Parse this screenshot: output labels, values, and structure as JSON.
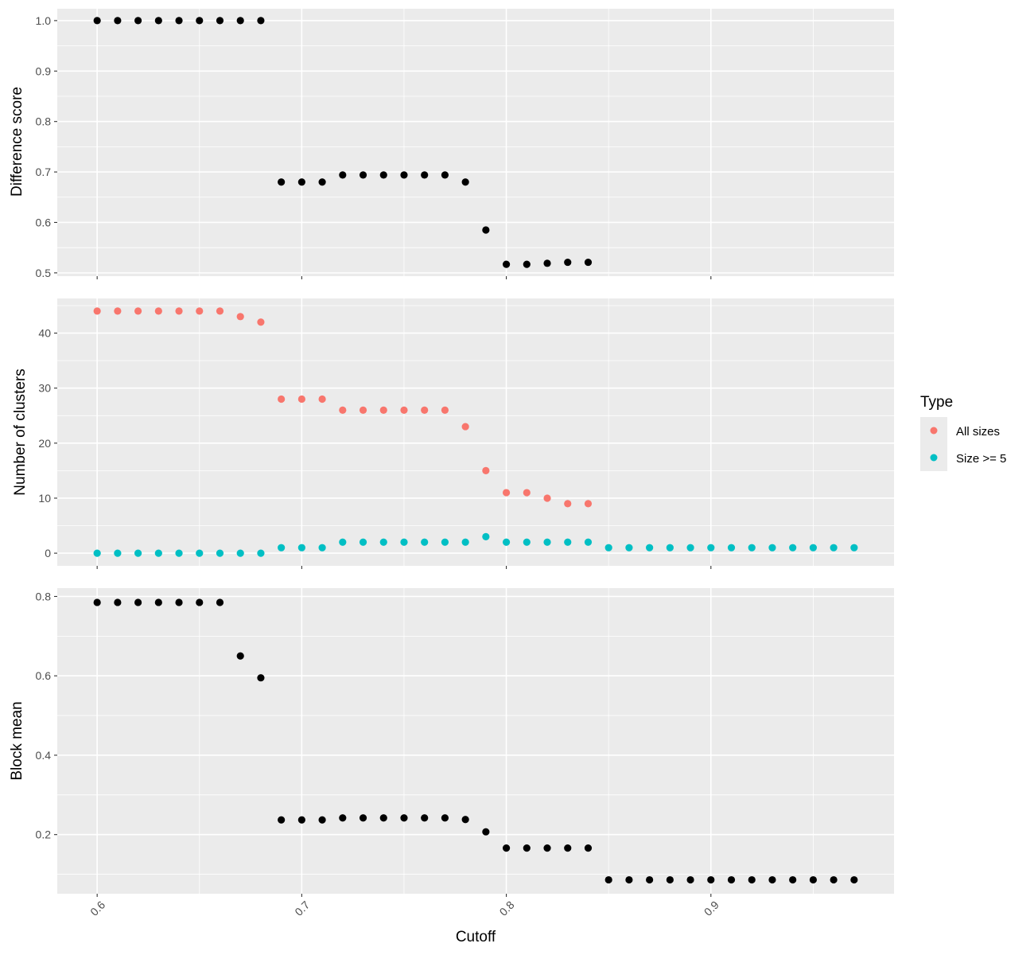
{
  "chart_data": [
    {
      "type": "scatter",
      "ylabel": "Difference score",
      "xlim": [
        0.5805,
        0.9895
      ],
      "ylim": [
        0.4935,
        1.0235
      ],
      "y_ticks": [
        0.5,
        0.6,
        0.7,
        0.8,
        0.9,
        1.0
      ],
      "y_tick_labels": [
        "0.5",
        "0.6",
        "0.7",
        "0.8",
        "0.9",
        "1.0"
      ],
      "grid": true,
      "series": [
        {
          "color": "#000000",
          "x": [
            0.6,
            0.61,
            0.62,
            0.63,
            0.64,
            0.65,
            0.66,
            0.67,
            0.68,
            0.69,
            0.7,
            0.71,
            0.72,
            0.73,
            0.74,
            0.75,
            0.76,
            0.77,
            0.78,
            0.79,
            0.8,
            0.81,
            0.82,
            0.83,
            0.84
          ],
          "y": [
            1.0,
            1.0,
            1.0,
            1.0,
            1.0,
            1.0,
            1.0,
            1.0,
            1.0,
            0.68,
            0.68,
            0.68,
            0.694,
            0.694,
            0.694,
            0.694,
            0.694,
            0.694,
            0.68,
            0.585,
            0.517,
            0.517,
            0.519,
            0.521,
            0.521
          ]
        }
      ]
    },
    {
      "type": "scatter",
      "ylabel": "Number of clusters",
      "xlim": [
        0.5805,
        0.9895
      ],
      "ylim": [
        -2.3,
        46.3
      ],
      "y_ticks": [
        0,
        10,
        20,
        30,
        40
      ],
      "y_tick_labels": [
        "0",
        "10",
        "20",
        "30",
        "40"
      ],
      "grid": true,
      "legend": {
        "title": "Type",
        "placement": "right",
        "entries": [
          {
            "label": "All sizes",
            "color": "#F8766D"
          },
          {
            "label": "Size >= 5",
            "color": "#00BFC4"
          }
        ]
      },
      "series": [
        {
          "name": "All sizes",
          "color": "#F8766D",
          "x": [
            0.6,
            0.61,
            0.62,
            0.63,
            0.64,
            0.65,
            0.66,
            0.67,
            0.68,
            0.69,
            0.7,
            0.71,
            0.72,
            0.73,
            0.74,
            0.75,
            0.76,
            0.77,
            0.78,
            0.79,
            0.8,
            0.81,
            0.82,
            0.83,
            0.84
          ],
          "y": [
            44,
            44,
            44,
            44,
            44,
            44,
            44,
            43,
            42,
            28,
            28,
            28,
            26,
            26,
            26,
            26,
            26,
            26,
            23,
            15,
            11,
            11,
            10,
            9,
            9
          ]
        },
        {
          "name": "Size >= 5",
          "color": "#00BFC4",
          "x": [
            0.6,
            0.61,
            0.62,
            0.63,
            0.64,
            0.65,
            0.66,
            0.67,
            0.68,
            0.69,
            0.7,
            0.71,
            0.72,
            0.73,
            0.74,
            0.75,
            0.76,
            0.77,
            0.78,
            0.79,
            0.8,
            0.81,
            0.82,
            0.83,
            0.84,
            0.85,
            0.86,
            0.87,
            0.88,
            0.89,
            0.9,
            0.91,
            0.92,
            0.93,
            0.94,
            0.95,
            0.96,
            0.97
          ],
          "y": [
            0,
            0,
            0,
            0,
            0,
            0,
            0,
            0,
            0,
            1,
            1,
            1,
            2,
            2,
            2,
            2,
            2,
            2,
            2,
            3,
            2,
            2,
            2,
            2,
            2,
            1,
            1,
            1,
            1,
            1,
            1,
            1,
            1,
            1,
            1,
            1,
            1,
            1
          ]
        }
      ]
    },
    {
      "type": "scatter",
      "ylabel": "Block mean",
      "xlabel": "Cutoff",
      "xlim": [
        0.5805,
        0.9895
      ],
      "ylim": [
        0.051,
        0.821
      ],
      "y_ticks": [
        0.2,
        0.4,
        0.6,
        0.8
      ],
      "y_tick_labels": [
        "0.2",
        "0.4",
        "0.6",
        "0.8"
      ],
      "x_ticks": [
        0.6,
        0.7,
        0.8,
        0.9
      ],
      "x_tick_labels": [
        "0.6",
        "0.7",
        "0.8",
        "0.9"
      ],
      "grid": true,
      "series": [
        {
          "color": "#000000",
          "x": [
            0.6,
            0.61,
            0.62,
            0.63,
            0.64,
            0.65,
            0.66,
            0.67,
            0.68,
            0.69,
            0.7,
            0.71,
            0.72,
            0.73,
            0.74,
            0.75,
            0.76,
            0.77,
            0.78,
            0.79,
            0.8,
            0.81,
            0.82,
            0.83,
            0.84,
            0.85,
            0.86,
            0.87,
            0.88,
            0.89,
            0.9,
            0.91,
            0.92,
            0.93,
            0.94,
            0.95,
            0.96,
            0.97
          ],
          "y": [
            0.785,
            0.785,
            0.785,
            0.785,
            0.785,
            0.785,
            0.785,
            0.65,
            0.595,
            0.237,
            0.237,
            0.237,
            0.242,
            0.242,
            0.242,
            0.242,
            0.242,
            0.242,
            0.238,
            0.207,
            0.166,
            0.166,
            0.166,
            0.166,
            0.166,
            0.086,
            0.086,
            0.086,
            0.086,
            0.086,
            0.086,
            0.086,
            0.086,
            0.086,
            0.086,
            0.086,
            0.086,
            0.086
          ]
        }
      ]
    }
  ]
}
